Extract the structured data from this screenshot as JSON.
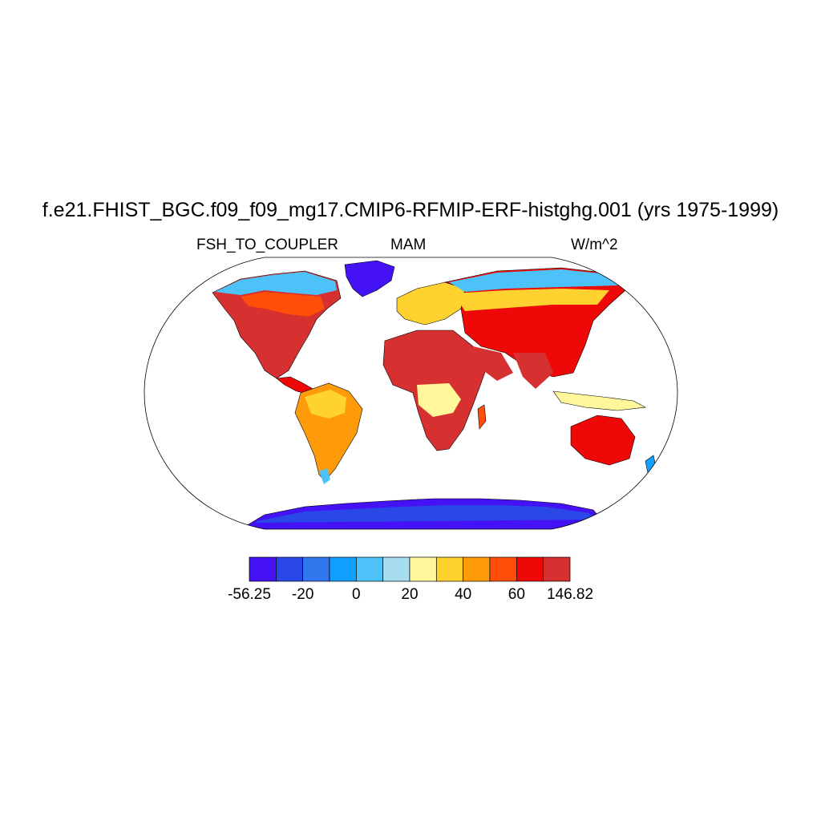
{
  "title": "f.e21.FHIST_BGC.f09_f09_mg17.CMIP6-RFMIP-ERF-histghg.001 (yrs 1975-1999)",
  "left_string": "FSH_TO_COUPLER",
  "center_string": "MAM",
  "right_string": "W/m^2",
  "projection": "robinson",
  "colorbar": {
    "colors": [
      "#4412f5",
      "#2a47e8",
      "#3377ee",
      "#11a0ff",
      "#4dc2f8",
      "#a8dcef",
      "#fff79a",
      "#ffd230",
      "#ff9a0a",
      "#ff4e0a",
      "#ee0808",
      "#d63030"
    ],
    "labels": [
      "-56.25",
      "-20",
      "0",
      "20",
      "40",
      "60",
      "146.82"
    ]
  }
}
